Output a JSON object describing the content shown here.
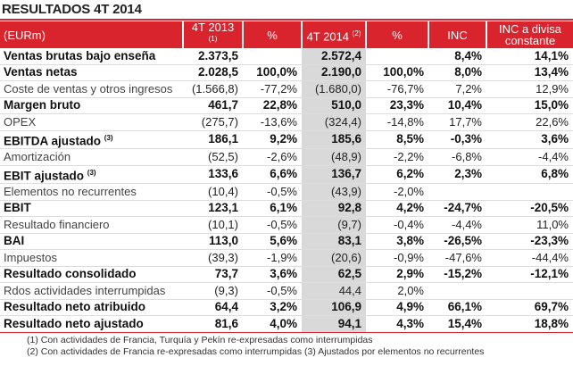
{
  "title": "RESULTADOS 4T 2014",
  "header": [
    {
      "text": "(EURm)"
    },
    {
      "text": "4T 2013",
      "sup": "(1)"
    },
    {
      "text": "%"
    },
    {
      "text": "4T 2014",
      "sup": "(2)"
    },
    {
      "text": "%"
    },
    {
      "text": "INC"
    },
    {
      "text": "INC a divisa constante"
    }
  ],
  "rows": [
    {
      "label": "Ventas brutas bajo enseña",
      "bold": true,
      "cells": [
        "2.373,5",
        null,
        "2.572,4",
        null,
        "8,4%",
        "14,1%"
      ]
    },
    {
      "label": "Ventas netas",
      "bold": true,
      "cells": [
        "2.028,5",
        "100,0%",
        "2.190,0",
        "100,0%",
        "8,0%",
        "13,4%"
      ]
    },
    {
      "label": "Coste de ventas y otros ingresos",
      "bold": false,
      "cells": [
        "(1.566,8)",
        "-77,2%",
        "(1.680,0)",
        "-76,7%",
        "7,2%",
        "12,9%"
      ]
    },
    {
      "label": "Margen bruto",
      "bold": true,
      "cells": [
        "461,7",
        "22,8%",
        "510,0",
        "23,3%",
        "10,4%",
        "15,0%"
      ]
    },
    {
      "label": "OPEX",
      "bold": false,
      "cells": [
        "(275,7)",
        "-13,6%",
        "(324,4)",
        "-14,8%",
        "17,7%",
        "22,6%"
      ]
    },
    {
      "label": "EBITDA ajustado",
      "sup": "(3)",
      "bold": true,
      "cells": [
        "186,1",
        "9,2%",
        "185,6",
        "8,5%",
        "-0,3%",
        "3,6%"
      ]
    },
    {
      "label": "Amortización",
      "bold": false,
      "cells": [
        "(52,5)",
        "-2,6%",
        "(48,9)",
        "-2,2%",
        "-6,8%",
        "-4,4%"
      ]
    },
    {
      "label": "EBIT ajustado",
      "sup": "(3)",
      "bold": true,
      "cells": [
        "133,6",
        "6,6%",
        "136,7",
        "6,2%",
        "2,3%",
        "6,8%"
      ]
    },
    {
      "label": "Elementos no recurrentes",
      "bold": false,
      "cells": [
        "(10,4)",
        "-0,5%",
        "(43,9)",
        "-2,0%",
        null,
        null
      ]
    },
    {
      "label": "EBIT",
      "bold": true,
      "cells": [
        "123,1",
        "6,1%",
        "92,8",
        "4,2%",
        "-24,7%",
        "-20,5%"
      ]
    },
    {
      "label": "Resultado financiero",
      "bold": false,
      "cells": [
        "(10,1)",
        "-0,5%",
        "(9,7)",
        "-0,4%",
        "-4,4%",
        "11,0%"
      ]
    },
    {
      "label": "BAI",
      "bold": true,
      "cells": [
        "113,0",
        "5,6%",
        "83,1",
        "3,8%",
        "-26,5%",
        "-23,3%"
      ]
    },
    {
      "label": "Impuestos",
      "bold": false,
      "cells": [
        "(39,3)",
        "-1,9%",
        "(20,6)",
        "-0,9%",
        "-47,6%",
        "-44,4%"
      ]
    },
    {
      "label": "Resultado consolidado",
      "bold": true,
      "cells": [
        "73,7",
        "3,6%",
        "62,5",
        "2,9%",
        "-15,2%",
        "-12,1%"
      ]
    },
    {
      "label": "Rdos actividades interrumpidas",
      "bold": false,
      "cells": [
        "(9,3)",
        "-0,5%",
        "44,4",
        "2,0%",
        null,
        null
      ]
    },
    {
      "label": "Resultado neto atribuido",
      "bold": true,
      "cells": [
        "64,4",
        "3,2%",
        "106,9",
        "4,9%",
        "66,1%",
        "69,7%"
      ]
    },
    {
      "label": "Resultado neto ajustado",
      "bold": true,
      "cells": [
        "81,6",
        "4,0%",
        "94,1",
        "4,3%",
        "15,4%",
        "18,8%"
      ]
    }
  ],
  "footnotes": [
    "(1) Con actividades de Francia, Turquía y Pekín re-expresadas como interrumpidas",
    "(2) Con actividades de Francia re-expresadas como interrumpidas (3) Ajustados por elementos no recurrentes"
  ]
}
